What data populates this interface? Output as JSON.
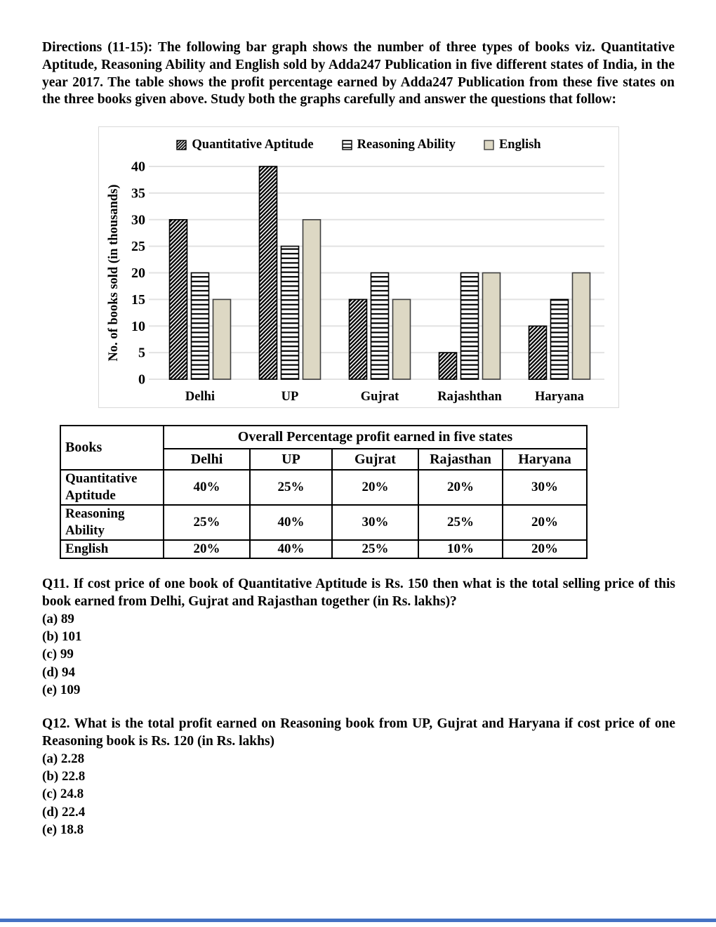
{
  "directions": "Directions (11-15): The following bar graph shows the number of three types of books viz. Quantitative Aptitude, Reasoning Ability and English sold by Adda247 Publication in five different states of India, in the year 2017. The table shows the profit percentage earned by Adda247 Publication from these five states on the three books given above. Study both the graphs carefully and answer the questions that follow:",
  "chart_data": {
    "type": "bar",
    "title": "",
    "xlabel": "",
    "ylabel": "No. of books sold (in thousands)",
    "categories": [
      "Delhi",
      "UP",
      "Gujrat",
      "Rajashthan",
      "Haryana"
    ],
    "series": [
      {
        "name": "Quantitative Aptitude",
        "pattern": "diagonal-hatch",
        "values": [
          30,
          40,
          15,
          5,
          10
        ]
      },
      {
        "name": "Reasoning Ability",
        "pattern": "horizontal-lines",
        "values": [
          20,
          25,
          20,
          20,
          15
        ]
      },
      {
        "name": "English",
        "pattern": "solid",
        "values": [
          15,
          30,
          15,
          20,
          20
        ]
      }
    ],
    "ylim": [
      0,
      40
    ],
    "ytick_step": 5,
    "grid": true,
    "legend_position": "top"
  },
  "table": {
    "corner_header": "Books",
    "span_header": "Overall Percentage profit earned in five states",
    "state_headers": [
      "Delhi",
      "UP",
      "Gujrat",
      "Rajasthan",
      "Haryana"
    ],
    "rows": [
      {
        "book": "Quantitative Aptitude",
        "values": [
          "40%",
          "25%",
          "20%",
          "20%",
          "30%"
        ]
      },
      {
        "book": "Reasoning Ability",
        "values": [
          "25%",
          "40%",
          "30%",
          "25%",
          "20%"
        ]
      },
      {
        "book": "English",
        "values": [
          "20%",
          "40%",
          "25%",
          "10%",
          "20%"
        ]
      }
    ]
  },
  "questions": [
    {
      "text": "Q11. If cost price of one book of Quantitative Aptitude is Rs. 150 then what is the total selling price of this book earned from Delhi, Gujrat and Rajasthan together (in Rs. lakhs)?",
      "options": [
        "(a) 89",
        "(b) 101",
        "(c) 99",
        "(d) 94",
        "(e) 109"
      ]
    },
    {
      "text": "Q12. What is the total profit earned on Reasoning book from UP, Gujrat and Haryana if cost price of one Reasoning book is Rs. 120 (in Rs. lakhs)",
      "options": [
        "(a) 2.28",
        "(b) 22.8",
        "(c) 24.8",
        "(d) 22.4",
        "(e) 18.8"
      ]
    }
  ],
  "colors": {
    "text": "#000000",
    "chart_border": "#D9D9D9",
    "gridline": "#E2E2E2",
    "english_fill": "#DDD8C4",
    "solid_bar_stroke": "#3F3F3F",
    "pattern_bar_stroke": "#000000",
    "footer_rule": "#4472C4"
  }
}
